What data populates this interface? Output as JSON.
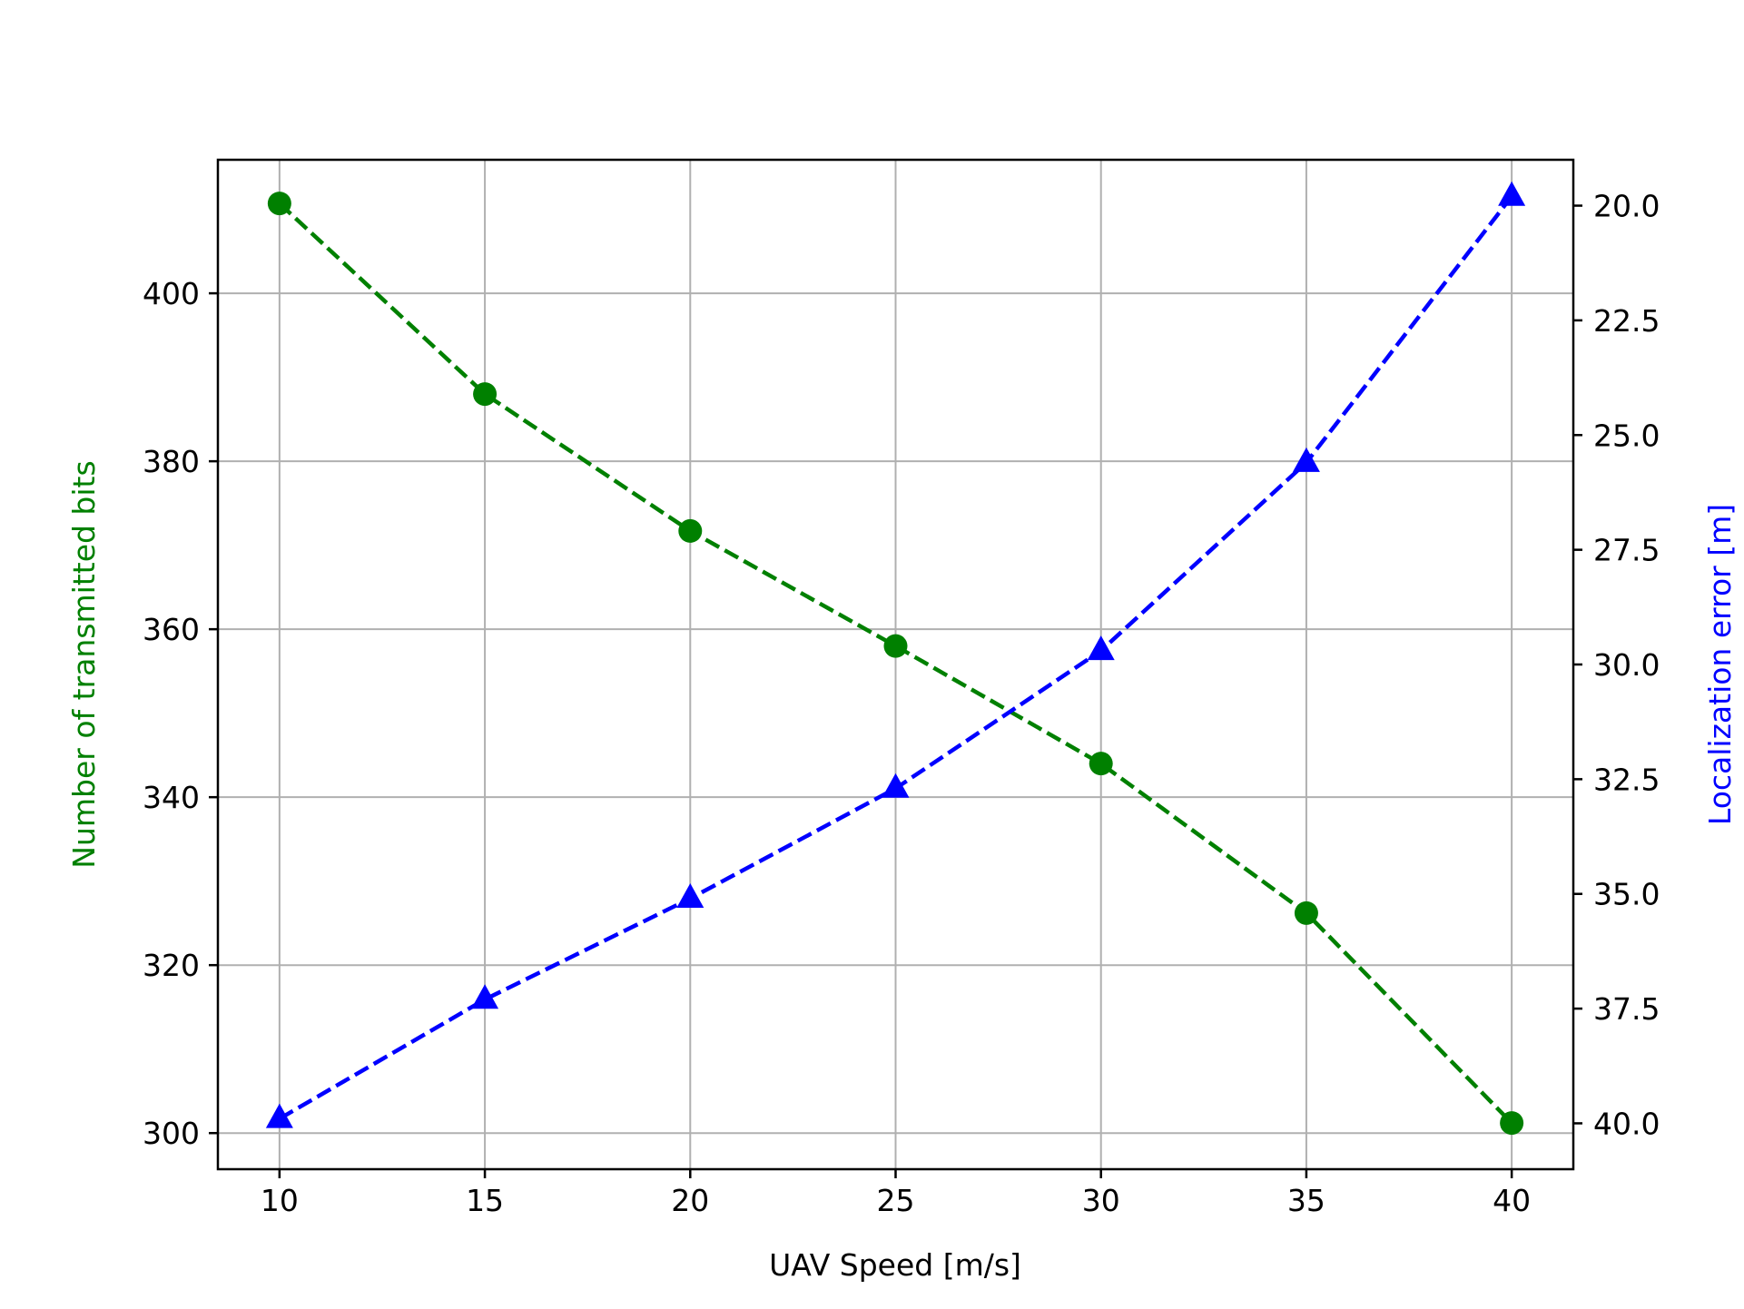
{
  "chart_data": {
    "type": "line",
    "title": "",
    "xlabel": "UAV Speed [m/s]",
    "ylabel": "Number of transmitted bits",
    "ylabel_right": "Localization error [m]",
    "x": [
      10,
      15,
      20,
      25,
      30,
      35,
      40
    ],
    "xticks": [
      10,
      15,
      20,
      25,
      30,
      35,
      40
    ],
    "xlim": [
      8.5,
      41.5
    ],
    "ylim": [
      295.7,
      415.9
    ],
    "yticks": [
      300,
      320,
      340,
      360,
      380,
      400
    ],
    "ylim_right": [
      41.0,
      19.0
    ],
    "inverted_right_axis": true,
    "yticks_right": [
      "20.0",
      "22.5",
      "25.0",
      "27.5",
      "30.0",
      "32.5",
      "35.0",
      "37.5",
      "40.0"
    ],
    "grid": true,
    "series": [
      {
        "name": "",
        "axis": "left",
        "color": "#008000",
        "marker": "circle",
        "linestyle": "dashed",
        "values": [
          410.7,
          388.0,
          371.7,
          358.0,
          344.0,
          326.2,
          301.2
        ]
      },
      {
        "name": "",
        "axis": "right",
        "color": "#0000ff",
        "marker": "triangle",
        "linestyle": "dashed",
        "values": [
          39.9,
          37.3,
          35.1,
          32.7,
          29.7,
          25.6,
          19.8
        ]
      }
    ]
  }
}
